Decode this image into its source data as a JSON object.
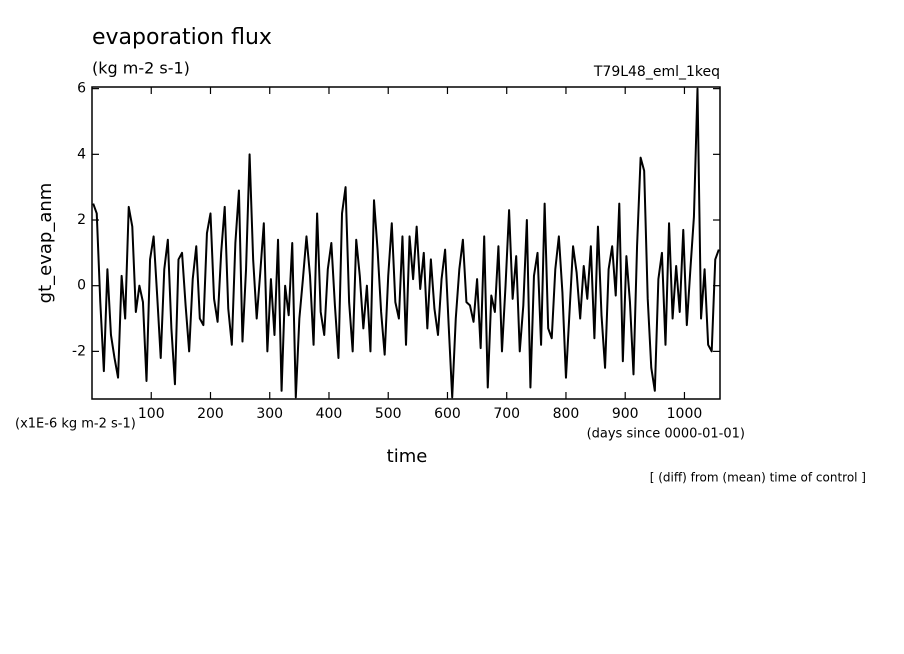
{
  "chart_data": {
    "type": "line",
    "title": "evaporation flux",
    "units": "(kg m-2 s-1)",
    "run_label": "T79L48_eml_1keq",
    "y_label": "gt_evap_anm",
    "y_unit_note": "(x1E-6 kg m-2 s-1)",
    "x_label": "time",
    "x_unit_note": "(days since 0000-01-01)",
    "footnote": "[ (diff) from (mean) time of control ]",
    "xlim": [
      0,
      1060
    ],
    "xticks": [
      100,
      200,
      300,
      400,
      500,
      600,
      700,
      800,
      900,
      1000
    ],
    "ylim": [
      -3.45,
      6.05
    ],
    "yticks": [
      -2,
      0,
      2,
      4,
      6
    ],
    "x": [
      2,
      8,
      14,
      20,
      26,
      32,
      38,
      44,
      50,
      56,
      62,
      68,
      74,
      80,
      86,
      92,
      98,
      104,
      110,
      116,
      122,
      128,
      134,
      140,
      146,
      152,
      158,
      164,
      170,
      176,
      182,
      188,
      194,
      200,
      206,
      212,
      218,
      224,
      230,
      236,
      242,
      248,
      254,
      260,
      266,
      272,
      278,
      284,
      290,
      296,
      302,
      308,
      314,
      320,
      326,
      332,
      338,
      344,
      350,
      356,
      362,
      368,
      374,
      380,
      386,
      392,
      398,
      404,
      410,
      416,
      422,
      428,
      434,
      440,
      446,
      452,
      458,
      464,
      470,
      476,
      482,
      488,
      494,
      500,
      506,
      512,
      518,
      524,
      530,
      536,
      542,
      548,
      554,
      560,
      566,
      572,
      578,
      584,
      590,
      596,
      602,
      608,
      614,
      620,
      626,
      632,
      638,
      644,
      650,
      656,
      662,
      668,
      674,
      680,
      686,
      692,
      698,
      704,
      710,
      716,
      722,
      728,
      734,
      740,
      746,
      752,
      758,
      764,
      770,
      776,
      782,
      788,
      794,
      800,
      806,
      812,
      818,
      824,
      830,
      836,
      842,
      848,
      854,
      860,
      866,
      872,
      878,
      884,
      890,
      896,
      902,
      908,
      914,
      920,
      926,
      932,
      938,
      944,
      950,
      956,
      962,
      968,
      974,
      980,
      986,
      992,
      998,
      1004,
      1010,
      1016,
      1022,
      1028,
      1034,
      1040,
      1046,
      1052,
      1058
    ],
    "series": [
      {
        "color": "#000000",
        "values": [
          2.5,
          2.2,
          -0.5,
          -2.6,
          0.5,
          -1.5,
          -2.2,
          -2.8,
          0.3,
          -1,
          2.4,
          1.8,
          -0.8,
          0,
          -0.5,
          -2.9,
          0.8,
          1.5,
          -0.3,
          -2.2,
          0.5,
          1.4,
          -1.3,
          -3.0,
          0.8,
          1.0,
          -0.6,
          -2.0,
          0.2,
          1.2,
          -1.0,
          -1.2,
          1.6,
          2.2,
          -0.4,
          -1.1,
          1.0,
          2.4,
          -0.7,
          -1.8,
          1.3,
          2.9,
          -1.7,
          0.5,
          4.0,
          0.8,
          -1.0,
          0.4,
          1.9,
          -2.0,
          0.2,
          -1.5,
          1.4,
          -3.2,
          0.0,
          -0.9,
          1.3,
          -3.4,
          -1.0,
          0.2,
          1.5,
          0.3,
          -1.8,
          2.2,
          -0.8,
          -1.5,
          0.5,
          1.3,
          -0.6,
          -2.2,
          2.2,
          3.0,
          -0.5,
          -2.0,
          1.4,
          0.3,
          -1.3,
          0.0,
          -2.0,
          2.6,
          1.1,
          -0.8,
          -2.1,
          0.3,
          1.9,
          -0.5,
          -1.0,
          1.5,
          -1.8,
          1.5,
          0.2,
          1.8,
          -0.1,
          1.0,
          -1.3,
          0.8,
          -0.7,
          -1.5,
          0.2,
          1.1,
          -1.2,
          -3.4,
          -1.0,
          0.5,
          1.4,
          -0.5,
          -0.6,
          -1.1,
          0.2,
          -1.9,
          1.5,
          -3.1,
          -0.3,
          -0.8,
          1.2,
          -2.0,
          0.0,
          2.3,
          -0.4,
          0.9,
          -2.0,
          -0.6,
          2.0,
          -3.1,
          0.3,
          1.0,
          -1.8,
          2.5,
          -1.3,
          -1.6,
          0.5,
          1.5,
          -0.2,
          -2.8,
          -0.8,
          1.2,
          0.4,
          -1.0,
          0.6,
          -0.4,
          1.2,
          -1.6,
          1.8,
          -0.9,
          -2.5,
          0.5,
          1.2,
          -0.3,
          2.5,
          -2.3,
          0.9,
          -0.5,
          -2.7,
          1.2,
          3.9,
          3.5,
          -0.4,
          -2.5,
          -3.2,
          0.2,
          1.0,
          -1.8,
          1.9,
          -1.0,
          0.6,
          -0.8,
          1.7,
          -1.2,
          0.5,
          2.1,
          6.0,
          -1.0,
          0.5,
          -1.8,
          -2.0,
          0.8,
          1.1
        ]
      }
    ]
  }
}
